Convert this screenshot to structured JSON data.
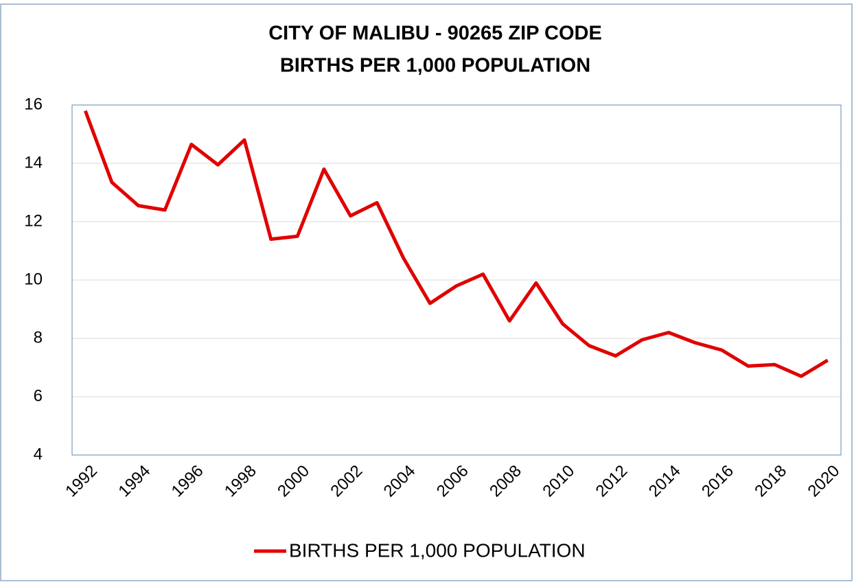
{
  "chart_data": {
    "type": "line",
    "title": "CITY OF MALIBU - 90265 ZIP CODE",
    "subtitle": "BIRTHS PER 1,000 POPULATION",
    "x": [
      1992,
      1993,
      1994,
      1995,
      1996,
      1997,
      1998,
      1999,
      2000,
      2001,
      2002,
      2003,
      2004,
      2005,
      2006,
      2007,
      2008,
      2009,
      2010,
      2011,
      2012,
      2013,
      2014,
      2015,
      2016,
      2017,
      2018,
      2019,
      2020
    ],
    "series": [
      {
        "name": "BIRTHS PER 1,000 POPULATION",
        "color": "#e00000",
        "values": [
          15.8,
          13.35,
          12.55,
          12.4,
          14.65,
          13.95,
          14.8,
          11.4,
          11.5,
          13.8,
          12.2,
          12.65,
          10.75,
          9.2,
          9.8,
          10.2,
          8.6,
          9.9,
          8.5,
          7.75,
          7.4,
          7.95,
          8.2,
          7.85,
          7.6,
          7.05,
          7.1,
          6.7,
          7.25
        ]
      }
    ],
    "xlim": [
      1991.5,
      2020.5
    ],
    "xticks": [
      1992,
      1994,
      1996,
      1998,
      2000,
      2002,
      2004,
      2006,
      2008,
      2010,
      2012,
      2014,
      2016,
      2018,
      2020
    ],
    "ylim": [
      4,
      16
    ],
    "yticks": [
      4,
      6,
      8,
      10,
      12,
      14,
      16
    ],
    "grid": true,
    "legend": "bottom"
  }
}
